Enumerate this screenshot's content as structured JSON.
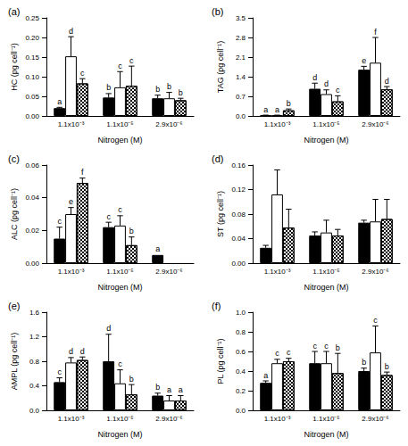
{
  "chart_data": [
    {
      "type": "bar",
      "title": "(a)",
      "x_label": "Nitrogen (M)",
      "y_label": "HC (pg cell⁻¹)",
      "categories": [
        "1.1x10⁻³",
        "1.1x10⁻⁵",
        "2.9x10⁻⁶"
      ],
      "series": [
        {
          "color": "#000000",
          "values": [
            0.02,
            0.047,
            0.045
          ],
          "error": [
            0.002,
            0.01,
            0.008
          ],
          "letters": [
            "a",
            "b",
            "b"
          ]
        },
        {
          "color": "#ffffff",
          "values": [
            0.152,
            0.073,
            0.045
          ],
          "error": [
            0.05,
            0.04,
            0.015
          ],
          "letters": [
            "d",
            "c",
            "b"
          ]
        },
        {
          "color": "#000000",
          "marker": "checkered",
          "values": [
            0.083,
            0.077,
            0.04
          ],
          "error": [
            0.012,
            0.05,
            0.005
          ],
          "letters": [
            "c",
            "c",
            "b"
          ]
        }
      ],
      "ylim": [
        0,
        0.25
      ],
      "yticks": [
        {
          "value": 0,
          "label": "0.00"
        },
        {
          "value": 0.05,
          "label": "0.05"
        },
        {
          "value": 0.1,
          "label": "0.10"
        },
        {
          "value": 0.15,
          "label": "0.15"
        },
        {
          "value": 0.2,
          "label": "0.20"
        },
        {
          "value": 0.25,
          "label": "0.25"
        }
      ]
    },
    {
      "type": "bar",
      "title": "(b)",
      "x_label": "Nitrogen (M)",
      "y_label": "TAG (pg cell⁻¹)",
      "categories": [
        "1.1x10⁻³",
        "1.1x10⁻⁵",
        "2.9x10⁻⁶"
      ],
      "series": [
        {
          "color": "#000000",
          "values": [
            0.02,
            0.97,
            1.65
          ],
          "error": [
            0.01,
            0.2,
            0.12
          ],
          "letters": [
            "a",
            "d",
            "e"
          ]
        },
        {
          "color": "#ffffff",
          "values": [
            0.02,
            0.78,
            1.9
          ],
          "error": [
            0.01,
            0.15,
            0.9
          ],
          "letters": [
            "a",
            "d",
            "f"
          ]
        },
        {
          "color": "#000000",
          "marker": "checkered",
          "values": [
            0.2,
            0.52,
            0.95
          ],
          "error": [
            0.05,
            0.2,
            0.1
          ],
          "letters": [
            "b",
            "c",
            "d"
          ]
        }
      ],
      "ylim": [
        0,
        3.5
      ],
      "yticks": [
        {
          "value": 0,
          "label": "0.0"
        },
        0.7,
        1.4,
        2.1,
        2.8,
        3.5
      ]
    },
    {
      "type": "bar",
      "title": "(c)",
      "x_label": "Nitrogen (M)",
      "y_label": "ALC (pg cell⁻¹)",
      "categories": [
        "1.1x10⁻³",
        "1.1x10⁻⁵",
        "2.9x10⁻⁶"
      ],
      "series": [
        {
          "color": "#000000",
          "values": [
            0.015,
            0.022,
            0.005
          ],
          "error": [
            0.007,
            0.003,
            0
          ],
          "letters": [
            "c",
            "c",
            "a"
          ]
        },
        {
          "color": "#ffffff",
          "values": [
            0.03,
            0.023,
            null
          ],
          "error": [
            0.004,
            0.006,
            null
          ],
          "letters": [
            "e",
            "c",
            null
          ]
        },
        {
          "color": "#000000",
          "marker": "checkered",
          "values": [
            0.049,
            0.011,
            null
          ],
          "error": [
            0.003,
            0.005,
            null
          ],
          "letters": [
            "f",
            "b",
            null
          ]
        }
      ],
      "ylim": [
        0,
        0.06
      ],
      "yticks": [
        {
          "value": 0,
          "label": "0.00"
        },
        {
          "value": 0.02,
          "label": "0.02"
        },
        {
          "value": 0.04,
          "label": "0.04"
        },
        {
          "value": 0.06,
          "label": "0.06"
        }
      ]
    },
    {
      "type": "bar",
      "title": "(d)",
      "x_label": "Nitrogen (M)",
      "y_label": "ST (pg cell⁻¹)",
      "categories": [
        "1.1x10⁻³",
        "1.1x10⁻⁵",
        "2.9x10⁻⁶"
      ],
      "series": [
        {
          "color": "#000000",
          "values": [
            0.025,
            0.045,
            0.066
          ],
          "error": [
            0.004,
            0.006,
            0.004
          ]
        },
        {
          "color": "#ffffff",
          "values": [
            0.112,
            0.05,
            0.068
          ],
          "error": [
            0.04,
            0.02,
            0.036
          ]
        },
        {
          "color": "#000000",
          "marker": "checkered",
          "values": [
            0.058,
            0.045,
            0.072
          ],
          "error": [
            0.03,
            0.01,
            0.032
          ]
        }
      ],
      "ylim": [
        0,
        0.16
      ],
      "yticks": [
        {
          "value": 0,
          "label": "0.00"
        },
        {
          "value": 0.04,
          "label": "0.04"
        },
        {
          "value": 0.08,
          "label": "0.08"
        },
        {
          "value": 0.12,
          "label": "0.12"
        },
        {
          "value": 0.16,
          "label": "0.16"
        }
      ]
    },
    {
      "type": "bar",
      "title": "(e)",
      "x_label": "Nitrogen (M)",
      "y_label": "AMPL (pg cell⁻¹)",
      "categories": [
        "1.1x10⁻³",
        "1.1x10⁻⁵",
        "2.9x10⁻⁶"
      ],
      "series": [
        {
          "color": "#000000",
          "values": [
            0.46,
            0.8,
            0.24
          ],
          "error": [
            0.07,
            0.44,
            0.04
          ],
          "letters": [
            "c",
            "d",
            "b"
          ]
        },
        {
          "color": "#ffffff",
          "values": [
            0.78,
            0.44,
            0.16
          ],
          "error": [
            0.08,
            0.22,
            0.08
          ],
          "letters": [
            "d",
            "c",
            "a"
          ]
        },
        {
          "color": "#000000",
          "marker": "checkered",
          "values": [
            0.82,
            0.26,
            0.16
          ],
          "error": [
            0.05,
            0.16,
            0.08
          ],
          "letters": [
            "d",
            "b",
            "a"
          ]
        }
      ],
      "ylim": [
        0,
        1.6
      ],
      "yticks": [
        {
          "value": 0,
          "label": "0.0"
        },
        0.4,
        0.8,
        1.2,
        1.6
      ]
    },
    {
      "type": "bar",
      "title": "(f)",
      "x_label": "Nitrogen (M)",
      "y_label": "PL (pg cell⁻¹)",
      "categories": [
        "1.1x10⁻³",
        "1.1x10⁻⁵",
        "2.9x10⁻⁶"
      ],
      "series": [
        {
          "color": "#000000",
          "values": [
            0.28,
            0.48,
            0.4
          ],
          "error": [
            0.02,
            0.12,
            0.03
          ],
          "letters": [
            "a",
            "c",
            "b"
          ]
        },
        {
          "color": "#ffffff",
          "values": [
            0.48,
            0.48,
            0.59
          ],
          "error": [
            0.04,
            0.12,
            0.27
          ],
          "letters": [
            "c",
            "c",
            "c"
          ]
        },
        {
          "color": "#000000",
          "marker": "checkered",
          "values": [
            0.5,
            0.38,
            0.36
          ],
          "error": [
            0.03,
            0.2,
            0.03
          ],
          "letters": [
            "c",
            "b",
            "b"
          ]
        }
      ],
      "ylim": [
        0,
        1.0
      ],
      "yticks": [
        {
          "value": 0,
          "label": "0.0"
        },
        0.2,
        0.4,
        0.6,
        0.8,
        {
          "value": 1.0,
          "label": "1.0"
        }
      ]
    }
  ]
}
